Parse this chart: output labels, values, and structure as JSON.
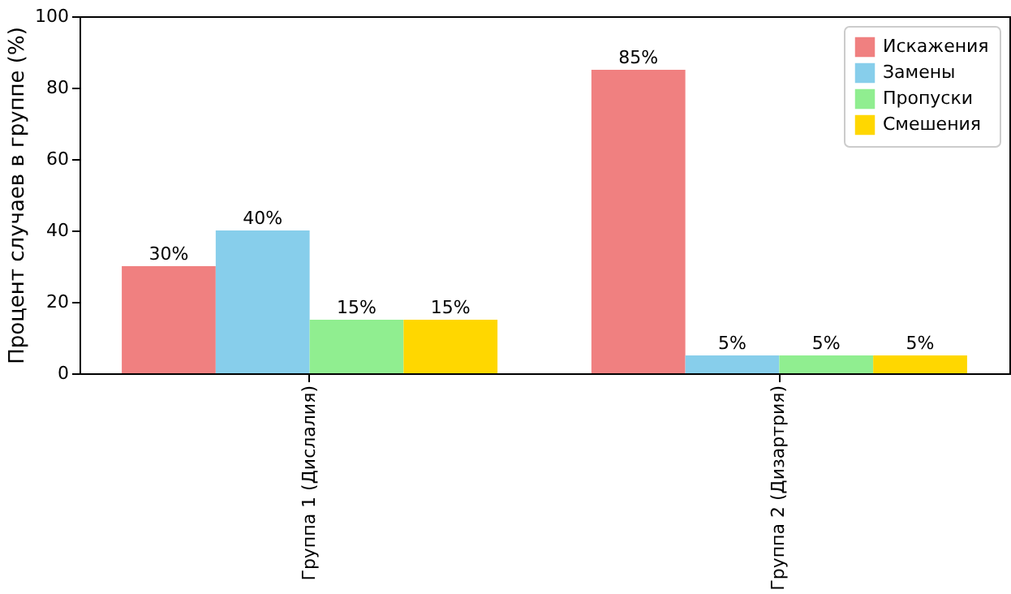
{
  "chart_data": {
    "type": "bar",
    "categories": [
      "Группа 1 (Дислалия)",
      "Группа 2 (Дизартрия)"
    ],
    "ylabel": "Процент случаев в группе (%)",
    "ylim": [
      0,
      100
    ],
    "yticks": [
      0,
      20,
      40,
      60,
      80,
      100
    ],
    "grid": false,
    "legend": "top right",
    "series": [
      {
        "name": "Искажения",
        "color": "#f08080",
        "values": [
          30,
          85
        ],
        "value_labels": [
          "30%",
          "85%"
        ]
      },
      {
        "name": "Замены",
        "color": "#87ceeb",
        "values": [
          40,
          5
        ],
        "value_labels": [
          "40%",
          "5%"
        ]
      },
      {
        "name": "Пропуски",
        "color": "#90ee90",
        "values": [
          15,
          5
        ],
        "value_labels": [
          "15%",
          "5%"
        ]
      },
      {
        "name": "Смешения",
        "color": "#ffd700",
        "values": [
          15,
          5
        ],
        "value_labels": [
          "15%",
          "5%"
        ]
      }
    ]
  }
}
